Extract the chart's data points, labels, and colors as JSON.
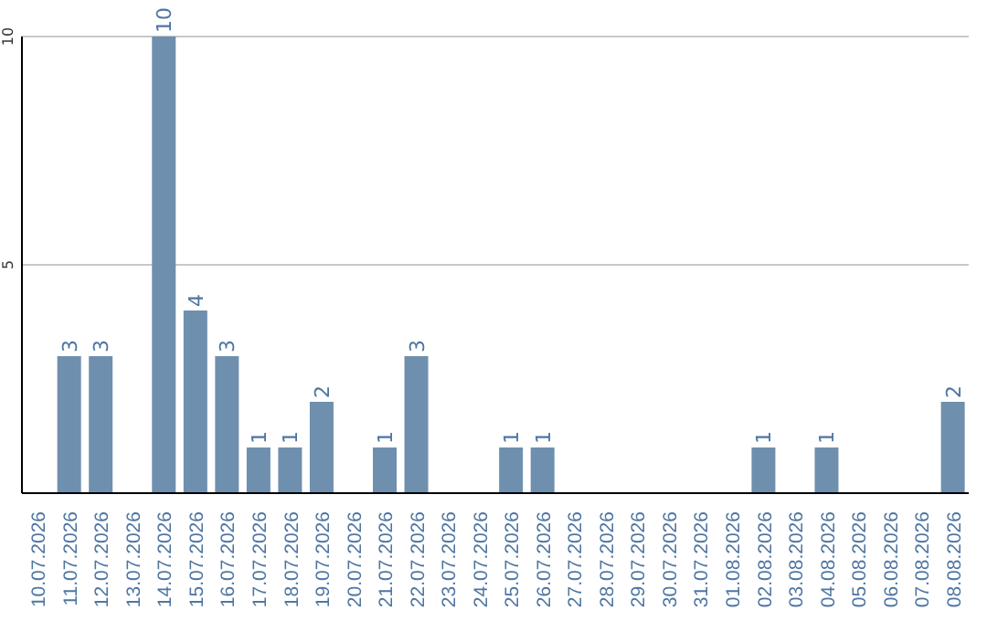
{
  "chart_data": {
    "type": "bar",
    "categories": [
      "10.07.2026",
      "11.07.2026",
      "12.07.2026",
      "13.07.2026",
      "14.07.2026",
      "15.07.2026",
      "16.07.2026",
      "17.07.2026",
      "18.07.2026",
      "19.07.2026",
      "20.07.2026",
      "21.07.2026",
      "22.07.2026",
      "23.07.2026",
      "24.07.2026",
      "25.07.2026",
      "26.07.2026",
      "27.07.2026",
      "28.07.2026",
      "29.07.2026",
      "30.07.2026",
      "31.07.2026",
      "01.08.2026",
      "02.08.2026",
      "03.08.2026",
      "04.08.2026",
      "05.08.2026",
      "06.08.2026",
      "07.08.2026",
      "08.08.2026"
    ],
    "values": [
      0,
      3,
      3,
      0,
      10,
      4,
      3,
      1,
      1,
      2,
      0,
      1,
      3,
      0,
      0,
      1,
      1,
      0,
      0,
      0,
      0,
      0,
      0,
      1,
      0,
      1,
      0,
      0,
      0,
      2
    ],
    "value_labels": [
      null,
      "3",
      "3",
      null,
      "10",
      "4",
      "3",
      "1",
      "1",
      "2",
      null,
      "1",
      "3",
      null,
      null,
      "1",
      "1",
      null,
      null,
      null,
      null,
      null,
      null,
      "1",
      null,
      "1",
      null,
      null,
      null,
      "2"
    ],
    "color": "#6f8fae",
    "ylim": [
      0,
      10
    ],
    "yticks": [
      5,
      10
    ],
    "grid": "y"
  }
}
